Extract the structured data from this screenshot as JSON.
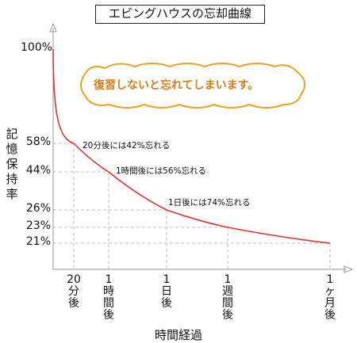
{
  "chart_data": {
    "type": "line",
    "title": "エビングハウスの忘却曲線",
    "xlabel": "時間経過",
    "ylabel": "記憶保持率",
    "callout": "復習しないと忘れてしまいます。",
    "y_ticks": [
      "100%",
      "58%",
      "44%",
      "26%",
      "23%",
      "21%"
    ],
    "x_ticks": [
      "20分後",
      "1時間後",
      "1日後",
      "1週間後",
      "1ヶ月後"
    ],
    "x_tick_chars": [
      [
        "20",
        "分",
        "後"
      ],
      [
        "1",
        "時",
        "間",
        "後"
      ],
      [
        "1",
        "日",
        "後"
      ],
      [
        "1",
        "週",
        "間",
        "後"
      ],
      [
        "1",
        "ヶ",
        "月",
        "後"
      ]
    ],
    "series": [
      {
        "values": [
          {
            "x": "0",
            "y": 100
          },
          {
            "x": "20分後",
            "y": 58
          },
          {
            "x": "1時間後",
            "y": 44
          },
          {
            "x": "1日後",
            "y": 26
          },
          {
            "x": "1週間後",
            "y": 23
          },
          {
            "x": "1ヶ月後",
            "y": 21
          }
        ]
      }
    ],
    "annotations": [
      {
        "text": "20分後には42%忘れる",
        "at": "20分後"
      },
      {
        "text": "1時間後には56%忘れる",
        "at": "1時間後"
      },
      {
        "text": "1日後には74%忘れる",
        "at": "1日後"
      }
    ],
    "colors": {
      "curve": "#e0342b",
      "bubble": "#f4a020",
      "grid": "#bdbdbd"
    },
    "grid": true
  }
}
